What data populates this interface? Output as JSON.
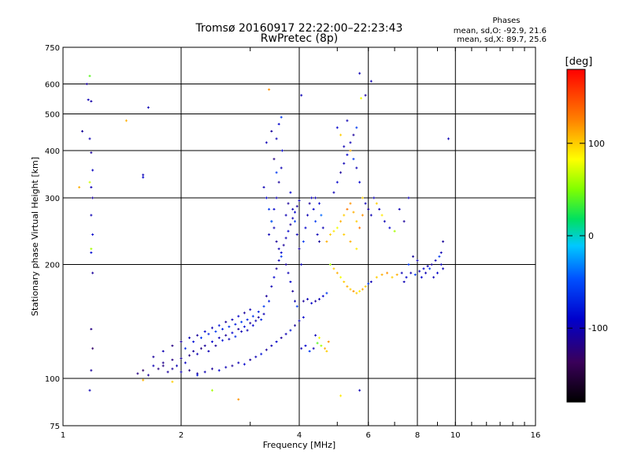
{
  "chart_data": {
    "type": "scatter",
    "title": "Tromsø 20160917 22:22:00–22:23:43",
    "subtitle": "RwPretec (8p)",
    "stats": {
      "heading": "Phases",
      "line_o": "mean, sd,O: -92.9, 21.6",
      "line_x": "mean, sd,X:  89.7, 25.6"
    },
    "xlabel": "Frequency [MHz]",
    "ylabel": "Stationary phase Virtual Height [km]",
    "x_scale": "log",
    "y_scale": "log",
    "xlim": [
      1,
      16
    ],
    "ylim": [
      75,
      750
    ],
    "x_ticks": [
      1,
      2,
      4,
      6,
      8,
      10,
      16
    ],
    "y_ticks": [
      75,
      100,
      200,
      300,
      400,
      500,
      600,
      750
    ],
    "grid": true,
    "colorbar": {
      "label": "[deg]",
      "range": [
        -180,
        180
      ],
      "ticks": [
        100,
        0,
        -100
      ]
    },
    "points": [
      [
        1.12,
        450,
        -110
      ],
      [
        1.15,
        600,
        -110
      ],
      [
        1.16,
        545,
        -100
      ],
      [
        1.17,
        630,
        40
      ],
      [
        1.18,
        540,
        -105
      ],
      [
        1.17,
        430,
        -100
      ],
      [
        1.18,
        395,
        -110
      ],
      [
        1.19,
        355,
        -95
      ],
      [
        1.18,
        320,
        -100
      ],
      [
        1.19,
        300,
        -110
      ],
      [
        1.18,
        270,
        -100
      ],
      [
        1.19,
        240,
        -90
      ],
      [
        1.18,
        215,
        -85
      ],
      [
        1.19,
        190,
        -110
      ],
      [
        1.18,
        135,
        -120
      ],
      [
        1.19,
        120,
        -130
      ],
      [
        1.18,
        105,
        -110
      ],
      [
        1.17,
        93,
        -100
      ],
      [
        1.18,
        220,
        60
      ],
      [
        1.17,
        330,
        70
      ],
      [
        1.6,
        345,
        -100
      ],
      [
        1.6,
        340,
        -90
      ],
      [
        1.65,
        520,
        -100
      ],
      [
        1.45,
        480,
        110
      ],
      [
        1.1,
        320,
        110
      ],
      [
        1.55,
        103,
        -120
      ],
      [
        1.6,
        105,
        -130
      ],
      [
        1.65,
        102,
        -110
      ],
      [
        1.7,
        108,
        -100
      ],
      [
        1.75,
        106,
        -120
      ],
      [
        1.8,
        110,
        -115
      ],
      [
        1.85,
        104,
        -110
      ],
      [
        1.9,
        112,
        -120
      ],
      [
        1.95,
        108,
        -100
      ],
      [
        2.0,
        113,
        -110
      ],
      [
        2.05,
        110,
        -95
      ],
      [
        2.1,
        115,
        -120
      ],
      [
        2.15,
        118,
        -110
      ],
      [
        2.2,
        116,
        -100
      ],
      [
        2.25,
        120,
        -120
      ],
      [
        2.3,
        122,
        -110
      ],
      [
        2.35,
        118,
        -100
      ],
      [
        2.4,
        125,
        -90
      ],
      [
        2.45,
        122,
        -110
      ],
      [
        2.5,
        128,
        -100
      ],
      [
        2.55,
        126,
        -80
      ],
      [
        2.6,
        130,
        -110
      ],
      [
        2.65,
        127,
        -100
      ],
      [
        2.7,
        132,
        -90
      ],
      [
        2.75,
        129,
        -70
      ],
      [
        2.8,
        135,
        -110
      ],
      [
        2.85,
        133,
        -100
      ],
      [
        2.9,
        137,
        -80
      ],
      [
        2.95,
        134,
        -100
      ],
      [
        3.0,
        140,
        -110
      ],
      [
        3.05,
        138,
        -90
      ],
      [
        3.1,
        142,
        -100
      ],
      [
        3.15,
        145,
        -110
      ],
      [
        3.2,
        143,
        -70
      ],
      [
        3.25,
        148,
        -100
      ],
      [
        1.7,
        114,
        -110
      ],
      [
        1.8,
        118,
        -100
      ],
      [
        1.9,
        122,
        -120
      ],
      [
        2.0,
        125,
        -110
      ],
      [
        2.1,
        128,
        -100
      ],
      [
        2.2,
        130,
        -110
      ],
      [
        2.3,
        133,
        -90
      ],
      [
        2.4,
        136,
        -100
      ],
      [
        2.5,
        138,
        -80
      ],
      [
        2.6,
        141,
        -110
      ],
      [
        2.7,
        143,
        -100
      ],
      [
        2.8,
        146,
        -90
      ],
      [
        2.9,
        149,
        -110
      ],
      [
        3.0,
        152,
        -100
      ],
      [
        1.8,
        108,
        -120
      ],
      [
        1.9,
        106,
        -110
      ],
      [
        2.0,
        104,
        -100
      ],
      [
        2.1,
        105,
        -120
      ],
      [
        2.2,
        103,
        -110
      ],
      [
        2.3,
        104,
        -100
      ],
      [
        2.4,
        106,
        -110
      ],
      [
        2.5,
        105,
        -90
      ],
      [
        2.6,
        107,
        -100
      ],
      [
        2.7,
        108,
        -110
      ],
      [
        2.8,
        110,
        -100
      ],
      [
        2.9,
        109,
        -90
      ],
      [
        3.0,
        112,
        -110
      ],
      [
        3.1,
        114,
        -100
      ],
      [
        3.2,
        116,
        -80
      ],
      [
        3.3,
        119,
        -110
      ],
      [
        3.4,
        122,
        -100
      ],
      [
        3.5,
        125,
        -90
      ],
      [
        3.6,
        128,
        -110
      ],
      [
        3.7,
        131,
        -100
      ],
      [
        3.8,
        134,
        -80
      ],
      [
        3.9,
        138,
        -110
      ],
      [
        4.0,
        142,
        -100
      ],
      [
        4.1,
        145,
        -90
      ],
      [
        2.05,
        120,
        -70
      ],
      [
        2.15,
        125,
        -80
      ],
      [
        2.25,
        128,
        -60
      ],
      [
        2.35,
        131,
        -70
      ],
      [
        2.45,
        133,
        -60
      ],
      [
        2.55,
        135,
        -70
      ],
      [
        2.65,
        137,
        -65
      ],
      [
        2.75,
        139,
        -75
      ],
      [
        2.85,
        141,
        -60
      ],
      [
        2.95,
        143,
        -70
      ],
      [
        3.05,
        146,
        -65
      ],
      [
        3.15,
        150,
        -70
      ],
      [
        3.25,
        155,
        -60
      ],
      [
        3.35,
        160,
        -75
      ],
      [
        3.3,
        165,
        -110
      ],
      [
        3.4,
        175,
        -100
      ],
      [
        3.45,
        185,
        -90
      ],
      [
        3.5,
        195,
        -110
      ],
      [
        3.55,
        205,
        -100
      ],
      [
        3.6,
        215,
        -90
      ],
      [
        3.65,
        225,
        -110
      ],
      [
        3.7,
        235,
        -100
      ],
      [
        3.75,
        245,
        -90
      ],
      [
        3.8,
        255,
        -110
      ],
      [
        3.85,
        265,
        -100
      ],
      [
        3.9,
        275,
        -90
      ],
      [
        3.95,
        285,
        -110
      ],
      [
        4.0,
        295,
        -100
      ],
      [
        3.35,
        240,
        -100
      ],
      [
        3.4,
        260,
        -110
      ],
      [
        3.45,
        280,
        -90
      ],
      [
        3.5,
        300,
        -100
      ],
      [
        3.55,
        330,
        -110
      ],
      [
        3.6,
        360,
        -100
      ],
      [
        3.62,
        400,
        -90
      ],
      [
        3.4,
        450,
        -110
      ],
      [
        3.5,
        430,
        -100
      ],
      [
        3.55,
        470,
        -90
      ],
      [
        3.6,
        490,
        -60
      ],
      [
        3.3,
        420,
        -100
      ],
      [
        3.45,
        380,
        -120
      ],
      [
        3.5,
        350,
        -60
      ],
      [
        3.25,
        320,
        -100
      ],
      [
        3.3,
        300,
        -90
      ],
      [
        3.35,
        280,
        -60
      ],
      [
        3.4,
        260,
        -40
      ],
      [
        3.45,
        250,
        -100
      ],
      [
        3.5,
        230,
        -110
      ],
      [
        3.55,
        220,
        -100
      ],
      [
        3.6,
        210,
        -60
      ],
      [
        3.7,
        200,
        -110
      ],
      [
        3.75,
        190,
        -100
      ],
      [
        3.8,
        180,
        -90
      ],
      [
        3.85,
        170,
        -110
      ],
      [
        3.9,
        160,
        -100
      ],
      [
        3.95,
        155,
        -60
      ],
      [
        3.7,
        270,
        -100
      ],
      [
        3.75,
        290,
        -110
      ],
      [
        3.8,
        310,
        -90
      ],
      [
        3.85,
        280,
        -100
      ],
      [
        3.9,
        260,
        -60
      ],
      [
        3.95,
        240,
        -100
      ],
      [
        4.0,
        220,
        -110
      ],
      [
        4.05,
        200,
        -100
      ],
      [
        4.1,
        230,
        -60
      ],
      [
        4.15,
        250,
        -90
      ],
      [
        4.2,
        270,
        -100
      ],
      [
        4.25,
        290,
        -110
      ],
      [
        4.3,
        300,
        -100
      ],
      [
        4.35,
        280,
        -90
      ],
      [
        4.4,
        260,
        -60
      ],
      [
        4.45,
        240,
        -100
      ],
      [
        4.5,
        230,
        -110
      ],
      [
        4.4,
        300,
        -100
      ],
      [
        4.5,
        290,
        -90
      ],
      [
        4.55,
        270,
        -40
      ],
      [
        4.6,
        250,
        -100
      ],
      [
        4.1,
        160,
        -110
      ],
      [
        4.2,
        162,
        -100
      ],
      [
        4.3,
        158,
        -90
      ],
      [
        4.4,
        160,
        -110
      ],
      [
        4.5,
        162,
        -100
      ],
      [
        4.6,
        165,
        -90
      ],
      [
        4.7,
        168,
        -60
      ],
      [
        4.05,
        120,
        -100
      ],
      [
        4.15,
        122,
        -90
      ],
      [
        4.25,
        118,
        -60
      ],
      [
        4.35,
        120,
        -100
      ],
      [
        4.45,
        124,
        40
      ],
      [
        4.55,
        122,
        60
      ],
      [
        4.65,
        120,
        110
      ],
      [
        4.7,
        118,
        100
      ],
      [
        4.75,
        125,
        120
      ],
      [
        4.4,
        130,
        -100
      ],
      [
        4.5,
        128,
        80
      ],
      [
        4.7,
        230,
        110
      ],
      [
        4.8,
        240,
        100
      ],
      [
        4.9,
        245,
        90
      ],
      [
        5.0,
        250,
        80
      ],
      [
        5.1,
        260,
        110
      ],
      [
        5.2,
        270,
        100
      ],
      [
        5.3,
        280,
        130
      ],
      [
        5.4,
        290,
        120
      ],
      [
        5.5,
        275,
        110
      ],
      [
        5.6,
        260,
        100
      ],
      [
        5.7,
        250,
        130
      ],
      [
        5.8,
        270,
        120
      ],
      [
        5.2,
        240,
        100
      ],
      [
        5.4,
        230,
        110
      ],
      [
        5.6,
        220,
        90
      ],
      [
        4.9,
        310,
        -100
      ],
      [
        5.0,
        330,
        -90
      ],
      [
        5.1,
        350,
        -110
      ],
      [
        5.2,
        370,
        -100
      ],
      [
        5.3,
        390,
        -90
      ],
      [
        5.4,
        420,
        -100
      ],
      [
        5.5,
        440,
        -110
      ],
      [
        5.6,
        460,
        -60
      ],
      [
        5.3,
        480,
        -100
      ],
      [
        5.0,
        460,
        -90
      ],
      [
        5.1,
        440,
        100
      ],
      [
        5.2,
        410,
        -100
      ],
      [
        5.4,
        400,
        110
      ],
      [
        5.5,
        380,
        -60
      ],
      [
        5.6,
        360,
        -100
      ],
      [
        5.7,
        330,
        -90
      ],
      [
        5.8,
        300,
        100
      ],
      [
        5.9,
        290,
        -100
      ],
      [
        6.0,
        280,
        -110
      ],
      [
        6.1,
        270,
        -100
      ],
      [
        4.8,
        200,
        60
      ],
      [
        4.9,
        195,
        100
      ],
      [
        5.0,
        190,
        110
      ],
      [
        5.1,
        185,
        80
      ],
      [
        5.2,
        180,
        100
      ],
      [
        5.3,
        175,
        110
      ],
      [
        5.4,
        172,
        100
      ],
      [
        5.5,
        170,
        120
      ],
      [
        5.6,
        168,
        100
      ],
      [
        5.7,
        170,
        90
      ],
      [
        5.8,
        172,
        110
      ],
      [
        5.9,
        175,
        100
      ],
      [
        6.0,
        178,
        -60
      ],
      [
        6.1,
        180,
        -100
      ],
      [
        6.3,
        185,
        100
      ],
      [
        6.5,
        188,
        110
      ],
      [
        6.7,
        190,
        120
      ],
      [
        6.9,
        185,
        100
      ],
      [
        7.1,
        188,
        110
      ],
      [
        7.3,
        190,
        -100
      ],
      [
        7.5,
        185,
        -90
      ],
      [
        7.7,
        190,
        -100
      ],
      [
        7.9,
        188,
        -60
      ],
      [
        8.1,
        192,
        -100
      ],
      [
        8.3,
        195,
        -90
      ],
      [
        8.5,
        198,
        -100
      ],
      [
        8.7,
        200,
        -110
      ],
      [
        8.9,
        205,
        -100
      ],
      [
        9.1,
        210,
        -60
      ],
      [
        9.2,
        200,
        -100
      ],
      [
        9.0,
        190,
        -90
      ],
      [
        8.8,
        185,
        -100
      ],
      [
        8.6,
        195,
        -60
      ],
      [
        8.4,
        190,
        -100
      ],
      [
        8.2,
        185,
        -90
      ],
      [
        8.0,
        205,
        -100
      ],
      [
        7.8,
        210,
        -110
      ],
      [
        7.6,
        200,
        -60
      ],
      [
        7.4,
        180,
        -100
      ],
      [
        9.3,
        195,
        -100
      ],
      [
        9.2,
        215,
        -100
      ],
      [
        9.3,
        230,
        -110
      ],
      [
        6.2,
        300,
        -100
      ],
      [
        6.3,
        290,
        100
      ],
      [
        6.4,
        280,
        -100
      ],
      [
        6.5,
        270,
        90
      ],
      [
        6.6,
        260,
        -100
      ],
      [
        6.8,
        250,
        -90
      ],
      [
        7.0,
        245,
        60
      ],
      [
        7.2,
        280,
        -100
      ],
      [
        7.4,
        260,
        -110
      ],
      [
        7.6,
        300,
        -100
      ],
      [
        9.6,
        430,
        -100
      ],
      [
        5.7,
        640,
        -100
      ],
      [
        5.75,
        550,
        80
      ],
      [
        5.9,
        560,
        -110
      ],
      [
        6.1,
        610,
        -100
      ],
      [
        3.35,
        580,
        120
      ],
      [
        4.05,
        560,
        -100
      ],
      [
        5.1,
        90,
        90
      ],
      [
        5.7,
        93,
        -100
      ],
      [
        2.8,
        88,
        120
      ],
      [
        2.4,
        93,
        60
      ],
      [
        1.9,
        98,
        100
      ],
      [
        1.6,
        99,
        110
      ],
      [
        2.2,
        102,
        -80
      ]
    ]
  }
}
